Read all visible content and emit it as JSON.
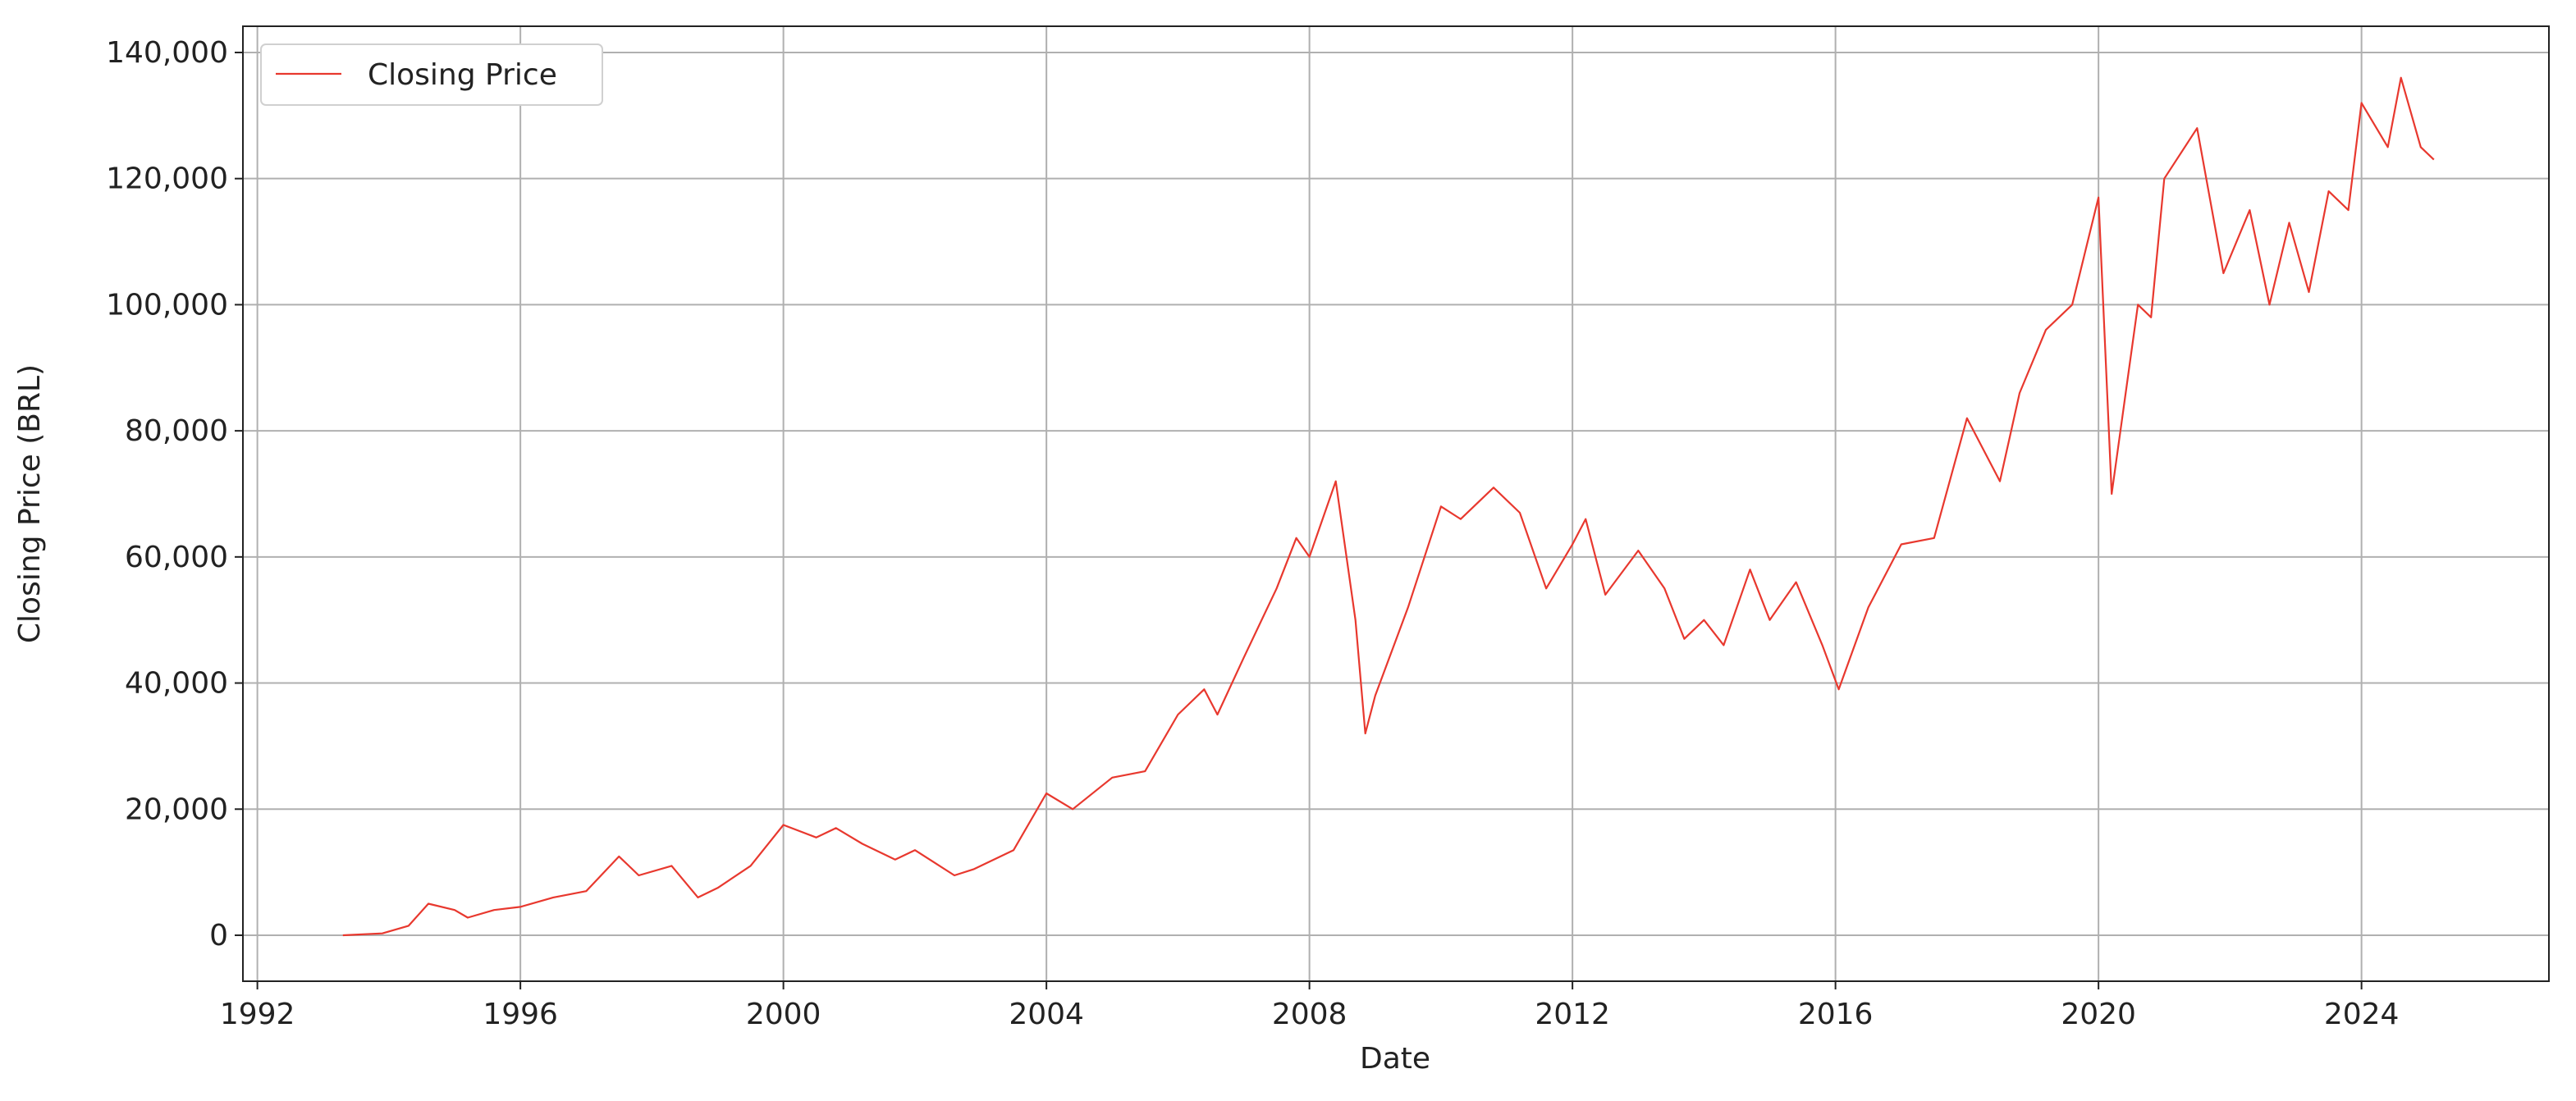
{
  "chart_data": {
    "type": "line",
    "x_label": "Date",
    "y_label": "Closing Price (BRL)",
    "xlim": [
      1991.78,
      2026.85
    ],
    "xticks": [
      1992,
      1996,
      2000,
      2004,
      2008,
      2012,
      2016,
      2020,
      2024
    ],
    "ylim": [
      -7290,
      144160
    ],
    "yticks": [
      0,
      {
        "value": 20000,
        "label": "20,000"
      },
      {
        "value": 40000,
        "label": "40,000"
      },
      {
        "value": 60000,
        "label": "60,000"
      },
      {
        "value": 80000,
        "label": "80,000"
      },
      {
        "value": 100000,
        "label": "100,000"
      },
      {
        "value": 120000,
        "label": "120,000"
      },
      {
        "value": 140000,
        "label": "140,000"
      }
    ],
    "grid": true,
    "legend": "upper left",
    "x": [
      1993.3,
      1993.9,
      1994.3,
      1994.6,
      1995.0,
      1995.2,
      1995.6,
      1996.0,
      1996.5,
      1997.0,
      1997.5,
      1997.8,
      1998.3,
      1998.7,
      1999.0,
      1999.5,
      2000.0,
      2000.5,
      2000.8,
      2001.2,
      2001.7,
      2002.0,
      2002.6,
      2002.9,
      2003.5,
      2004.0,
      2004.4,
      2005.0,
      2005.5,
      2006.0,
      2006.4,
      2006.6,
      2007.0,
      2007.5,
      2007.8,
      2008.0,
      2008.4,
      2008.7,
      2008.85,
      2009.0,
      2009.5,
      2010.0,
      2010.3,
      2010.8,
      2011.2,
      2011.6,
      2012.0,
      2012.2,
      2012.5,
      2013.0,
      2013.4,
      2013.7,
      2014.0,
      2014.3,
      2014.7,
      2015.0,
      2015.4,
      2015.8,
      2016.05,
      2016.5,
      2017.0,
      2017.5,
      2018.0,
      2018.5,
      2018.8,
      2019.2,
      2019.6,
      2020.0,
      2020.2,
      2020.4,
      2020.6,
      2020.8,
      2021.0,
      2021.5,
      2021.9,
      2022.3,
      2022.6,
      2022.9,
      2023.2,
      2023.5,
      2023.8,
      2024.0,
      2024.4,
      2024.6,
      2024.9,
      2025.1
    ],
    "series": [
      {
        "name": "Closing Price",
        "color": "#e8382e",
        "values": [
          0,
          300,
          1500,
          5000,
          4000,
          2800,
          4000,
          4500,
          6000,
          7000,
          12500,
          9500,
          11000,
          6000,
          7500,
          11000,
          17500,
          15500,
          17000,
          14500,
          12000,
          13500,
          9500,
          10500,
          13500,
          22500,
          20000,
          25000,
          26000,
          35000,
          39000,
          35000,
          44000,
          55000,
          63000,
          60000,
          72000,
          50000,
          32000,
          38000,
          52000,
          68000,
          66000,
          71000,
          67000,
          55000,
          62000,
          66000,
          54000,
          61000,
          55000,
          47000,
          50000,
          46000,
          58000,
          50000,
          56000,
          46000,
          39000,
          52000,
          62000,
          63000,
          82000,
          72000,
          86000,
          96000,
          100000,
          117000,
          70000,
          85000,
          100000,
          98000,
          120000,
          128000,
          105000,
          115000,
          100000,
          113000,
          102000,
          118000,
          115000,
          132000,
          125000,
          136000,
          125000,
          123000
        ]
      }
    ]
  }
}
